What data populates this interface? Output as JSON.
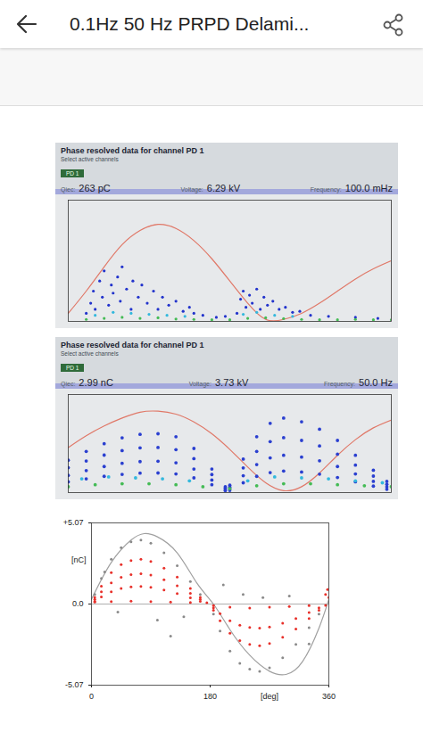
{
  "header": {
    "title": "0.1Hz 50 Hz PRPD Delami..."
  },
  "chart_data": [
    {
      "type": "scatter",
      "title": "Phase resolved data for channel PD 1",
      "subtitle": "Select active channels",
      "channel": "PD 1",
      "readings": [
        {
          "label": "Qiec:",
          "value": "263 pC"
        },
        {
          "label": "Voltage:",
          "value": "6.29 kV"
        },
        {
          "label": "Frequency:",
          "value": "100.0 mHz"
        }
      ],
      "xlim": [
        0,
        360
      ],
      "ylim": [
        0,
        600
      ],
      "tick_labels": false,
      "grid": false,
      "series": [
        {
          "type": "line",
          "color": "#e07868",
          "x": [
            0,
            20,
            40,
            60,
            80,
            100,
            120,
            140,
            160,
            180,
            200,
            220,
            240,
            260,
            280,
            300,
            320,
            340,
            360
          ],
          "y": [
            40,
            150,
            270,
            380,
            450,
            480,
            460,
            400,
            310,
            200,
            90,
            10,
            10,
            40,
            90,
            150,
            210,
            260,
            300
          ]
        },
        {
          "color": "#2233cc",
          "x": [
            20,
            25,
            28,
            30,
            35,
            38,
            40,
            45,
            48,
            50,
            55,
            58,
            60,
            65,
            70,
            72,
            78,
            82,
            88,
            95,
            100,
            105,
            112,
            120,
            128,
            135,
            140,
            150,
            165,
            175,
            188,
            192,
            195,
            198,
            202,
            205,
            210,
            214,
            218,
            222,
            228,
            235,
            242,
            250,
            258,
            270,
            290,
            320,
            345
          ],
          "y": [
            40,
            90,
            150,
            60,
            200,
            120,
            250,
            80,
            180,
            140,
            220,
            100,
            270,
            160,
            60,
            200,
            120,
            180,
            90,
            150,
            60,
            120,
            80,
            100,
            50,
            70,
            40,
            30,
            20,
            25,
            40,
            110,
            150,
            70,
            130,
            90,
            160,
            60,
            120,
            80,
            100,
            60,
            70,
            45,
            50,
            30,
            25,
            20,
            15
          ]
        },
        {
          "color": "#33b8dd",
          "x": [
            30,
            50,
            70,
            90,
            110,
            130,
            195,
            210,
            230,
            250
          ],
          "y": [
            30,
            45,
            40,
            35,
            30,
            25,
            35,
            45,
            30,
            25
          ]
        },
        {
          "color": "#44bb55",
          "x": [
            20,
            40,
            60,
            80,
            100,
            120,
            140,
            160,
            180,
            200,
            220,
            240,
            260,
            280,
            300,
            320,
            340,
            360
          ],
          "y": [
            10,
            15,
            20,
            15,
            18,
            12,
            10,
            8,
            8,
            15,
            18,
            14,
            10,
            8,
            8,
            10,
            8,
            8
          ]
        }
      ]
    },
    {
      "type": "scatter",
      "title": "Phase resolved data for channel PD 1",
      "subtitle": "Select active channels",
      "channel": "PD 1",
      "readings": [
        {
          "label": "Qiec:",
          "value": "2.99 nC"
        },
        {
          "label": "Voltage:",
          "value": "3.73 kV"
        },
        {
          "label": "Frequency:",
          "value": "50.0 Hz"
        }
      ],
      "xlim": [
        0,
        360
      ],
      "ylim": [
        0,
        5
      ],
      "tick_labels": false,
      "grid": false,
      "series": [
        {
          "type": "line",
          "color": "#e07868",
          "x": [
            0,
            20,
            40,
            60,
            80,
            100,
            120,
            140,
            160,
            180,
            200,
            220,
            240,
            260,
            280,
            300,
            320,
            340,
            360
          ],
          "y": [
            2.3,
            2.9,
            3.4,
            3.8,
            4.1,
            4.15,
            4.0,
            3.6,
            3.0,
            2.2,
            1.3,
            0.5,
            0.1,
            0.3,
            1.0,
            1.9,
            2.7,
            3.3,
            3.7
          ]
        },
        {
          "color": "#2a3fd0",
          "x": [
            0,
            20,
            40,
            60,
            80,
            100,
            120,
            140,
            160,
            175
          ],
          "y": [
            1.65,
            2.1,
            2.49,
            2.79,
            2.97,
            3.0,
            2.85,
            2.25,
            1.2,
            0.3
          ]
        },
        {
          "color": "#2a3fd0",
          "x": [
            0,
            20,
            40,
            60,
            80,
            100,
            120,
            140,
            160,
            175
          ],
          "y": [
            1.27,
            1.61,
            1.91,
            2.14,
            2.28,
            2.3,
            2.19,
            1.73,
            0.92,
            0.23
          ]
        },
        {
          "color": "#2a3fd0",
          "x": [
            0,
            20,
            40,
            60,
            80,
            100,
            120,
            140,
            160,
            175
          ],
          "y": [
            0.88,
            1.12,
            1.33,
            1.49,
            1.58,
            1.6,
            1.52,
            1.2,
            0.64,
            0.16
          ]
        },
        {
          "color": "#2a3fd0",
          "x": [
            0,
            20,
            40,
            60,
            80,
            100,
            120,
            140,
            160,
            175
          ],
          "y": [
            0.55,
            0.7,
            0.83,
            0.93,
            0.99,
            1.0,
            0.95,
            0.75,
            0.4,
            0.1
          ]
        },
        {
          "color": "#2a3fd0",
          "x": [
            180,
            195,
            210,
            225,
            240,
            260,
            280,
            300,
            320,
            340,
            355
          ],
          "y": [
            0.38,
            1.71,
            2.85,
            3.53,
            3.8,
            3.61,
            3.23,
            2.66,
            1.9,
            1.14,
            0.57
          ]
        },
        {
          "color": "#2a3fd0",
          "x": [
            180,
            195,
            210,
            225,
            240,
            260,
            280,
            300,
            320,
            340,
            355
          ],
          "y": [
            0.28,
            1.26,
            2.1,
            2.6,
            2.8,
            2.66,
            2.38,
            1.96,
            1.4,
            0.84,
            0.42
          ]
        },
        {
          "color": "#2a3fd0",
          "x": [
            180,
            195,
            210,
            225,
            240,
            260,
            280,
            300,
            320,
            340,
            355
          ],
          "y": [
            0.19,
            0.86,
            1.43,
            1.77,
            1.9,
            1.81,
            1.62,
            1.33,
            0.95,
            0.57,
            0.29
          ]
        },
        {
          "color": "#2a3fd0",
          "x": [
            180,
            195,
            210,
            225,
            240,
            260,
            280,
            300,
            320,
            340,
            355
          ],
          "y": [
            0.11,
            0.5,
            0.83,
            1.02,
            1.1,
            1.05,
            0.94,
            0.77,
            0.55,
            0.33,
            0.17
          ]
        },
        {
          "color": "#33b8dd",
          "x": [
            15,
            45,
            75,
            105,
            135,
            200,
            230,
            260,
            290,
            320,
            350
          ],
          "y": [
            0.7,
            0.8,
            0.75,
            0.7,
            0.6,
            0.6,
            0.8,
            0.75,
            0.7,
            0.6,
            0.5
          ]
        },
        {
          "color": "#44bb55",
          "x": [
            0,
            30,
            60,
            90,
            120,
            150,
            180,
            210,
            240,
            270,
            300,
            330,
            360
          ],
          "y": [
            0.3,
            0.4,
            0.45,
            0.45,
            0.4,
            0.3,
            0.2,
            0.35,
            0.45,
            0.45,
            0.4,
            0.35,
            0.3
          ]
        }
      ]
    },
    {
      "type": "scatter",
      "x_label": "[deg]",
      "y_label": "[nC]",
      "xlim": [
        0,
        360
      ],
      "ylim": [
        -5.07,
        5.07
      ],
      "xticks": [
        0,
        180,
        360
      ],
      "yticks": [
        {
          "value": 5.07,
          "label": "+5.07"
        },
        {
          "value": 0,
          "label": "0.0"
        },
        {
          "value": -5.07,
          "label": "-5.07"
        }
      ],
      "series": [
        {
          "type": "line",
          "color": "#a0a0a0",
          "x": [
            0,
            30,
            60,
            80,
            100,
            130,
            160,
            185,
            210,
            240,
            270,
            295,
            320,
            345,
            360
          ],
          "y": [
            0.3,
            2.6,
            4.0,
            4.4,
            4.2,
            3.2,
            1.3,
            0,
            -1.6,
            -3.2,
            -4.2,
            -4.4,
            -3.6,
            -1.5,
            0.3
          ]
        },
        {
          "color": "#8a8a8a",
          "x": [
            5,
            15,
            30,
            45,
            60,
            75,
            90,
            110,
            130,
            150,
            165
          ],
          "y": [
            0.6,
            1.6,
            2.8,
            3.52,
            3.88,
            4.0,
            3.8,
            3.2,
            2.4,
            1.4,
            0.6
          ]
        },
        {
          "color": "#8a8a8a",
          "x": [
            185,
            195,
            210,
            225,
            240,
            255,
            270,
            290,
            310,
            330,
            345
          ],
          "y": [
            -0.63,
            -1.68,
            -2.94,
            -3.7,
            -4.07,
            -4.2,
            -3.99,
            -3.36,
            -2.52,
            -1.47,
            -0.63
          ]
        },
        {
          "color": "#8a8a8a",
          "x": [
            100,
            120,
            140,
            200,
            230,
            260,
            300,
            40,
            20,
            330
          ],
          "y": [
            -1.0,
            -2.0,
            -0.8,
            1.2,
            0.6,
            0.4,
            0.5,
            -0.5,
            2.0,
            -2.5
          ]
        },
        {
          "color": "#e8302a",
          "x": [
            5,
            15,
            30,
            45,
            60,
            75,
            90,
            110,
            130,
            150,
            165
          ],
          "y": [
            0.42,
            1.12,
            1.96,
            2.46,
            2.72,
            2.8,
            2.66,
            2.24,
            1.68,
            0.98,
            0.42
          ]
        },
        {
          "color": "#e8302a",
          "x": [
            5,
            15,
            30,
            45,
            60,
            75,
            90,
            110,
            130,
            150,
            165
          ],
          "y": [
            0.29,
            0.76,
            1.33,
            1.67,
            1.84,
            1.9,
            1.81,
            1.52,
            1.14,
            0.67,
            0.29
          ]
        },
        {
          "color": "#e8302a",
          "x": [
            5,
            15,
            30,
            45,
            60,
            75,
            90,
            110,
            130,
            150,
            165
          ],
          "y": [
            0.17,
            0.44,
            0.77,
            0.97,
            1.07,
            1.1,
            1.05,
            0.88,
            0.66,
            0.39,
            0.17
          ]
        },
        {
          "color": "#e8302a",
          "x": [
            185,
            195,
            210,
            225,
            240,
            255,
            270,
            290,
            310,
            330,
            345
          ],
          "y": [
            -0.39,
            -1.04,
            -1.82,
            -2.29,
            -2.52,
            -2.6,
            -2.47,
            -2.08,
            -1.56,
            -0.91,
            -0.39
          ]
        },
        {
          "color": "#e8302a",
          "x": [
            185,
            195,
            210,
            225,
            240,
            255,
            270,
            290,
            310,
            330,
            345
          ],
          "y": [
            -0.23,
            -0.6,
            -1.05,
            -1.32,
            -1.46,
            -1.5,
            -1.43,
            -1.2,
            -0.9,
            -0.53,
            -0.23
          ]
        },
        {
          "color": "#e8302a",
          "x": [
            5,
            30,
            60,
            90,
            120,
            150,
            175,
            185,
            210,
            240,
            270,
            300,
            330,
            355
          ],
          "y": [
            0.12,
            0.15,
            0.18,
            0.15,
            0.12,
            0.1,
            0.08,
            -0.1,
            -0.2,
            -0.25,
            -0.2,
            -0.15,
            -0.1,
            -0.08
          ]
        },
        {
          "color": "#e8302a",
          "x": [
            355,
            358,
            360
          ],
          "y": [
            0.6,
            0.9,
            0.4
          ]
        }
      ]
    }
  ]
}
